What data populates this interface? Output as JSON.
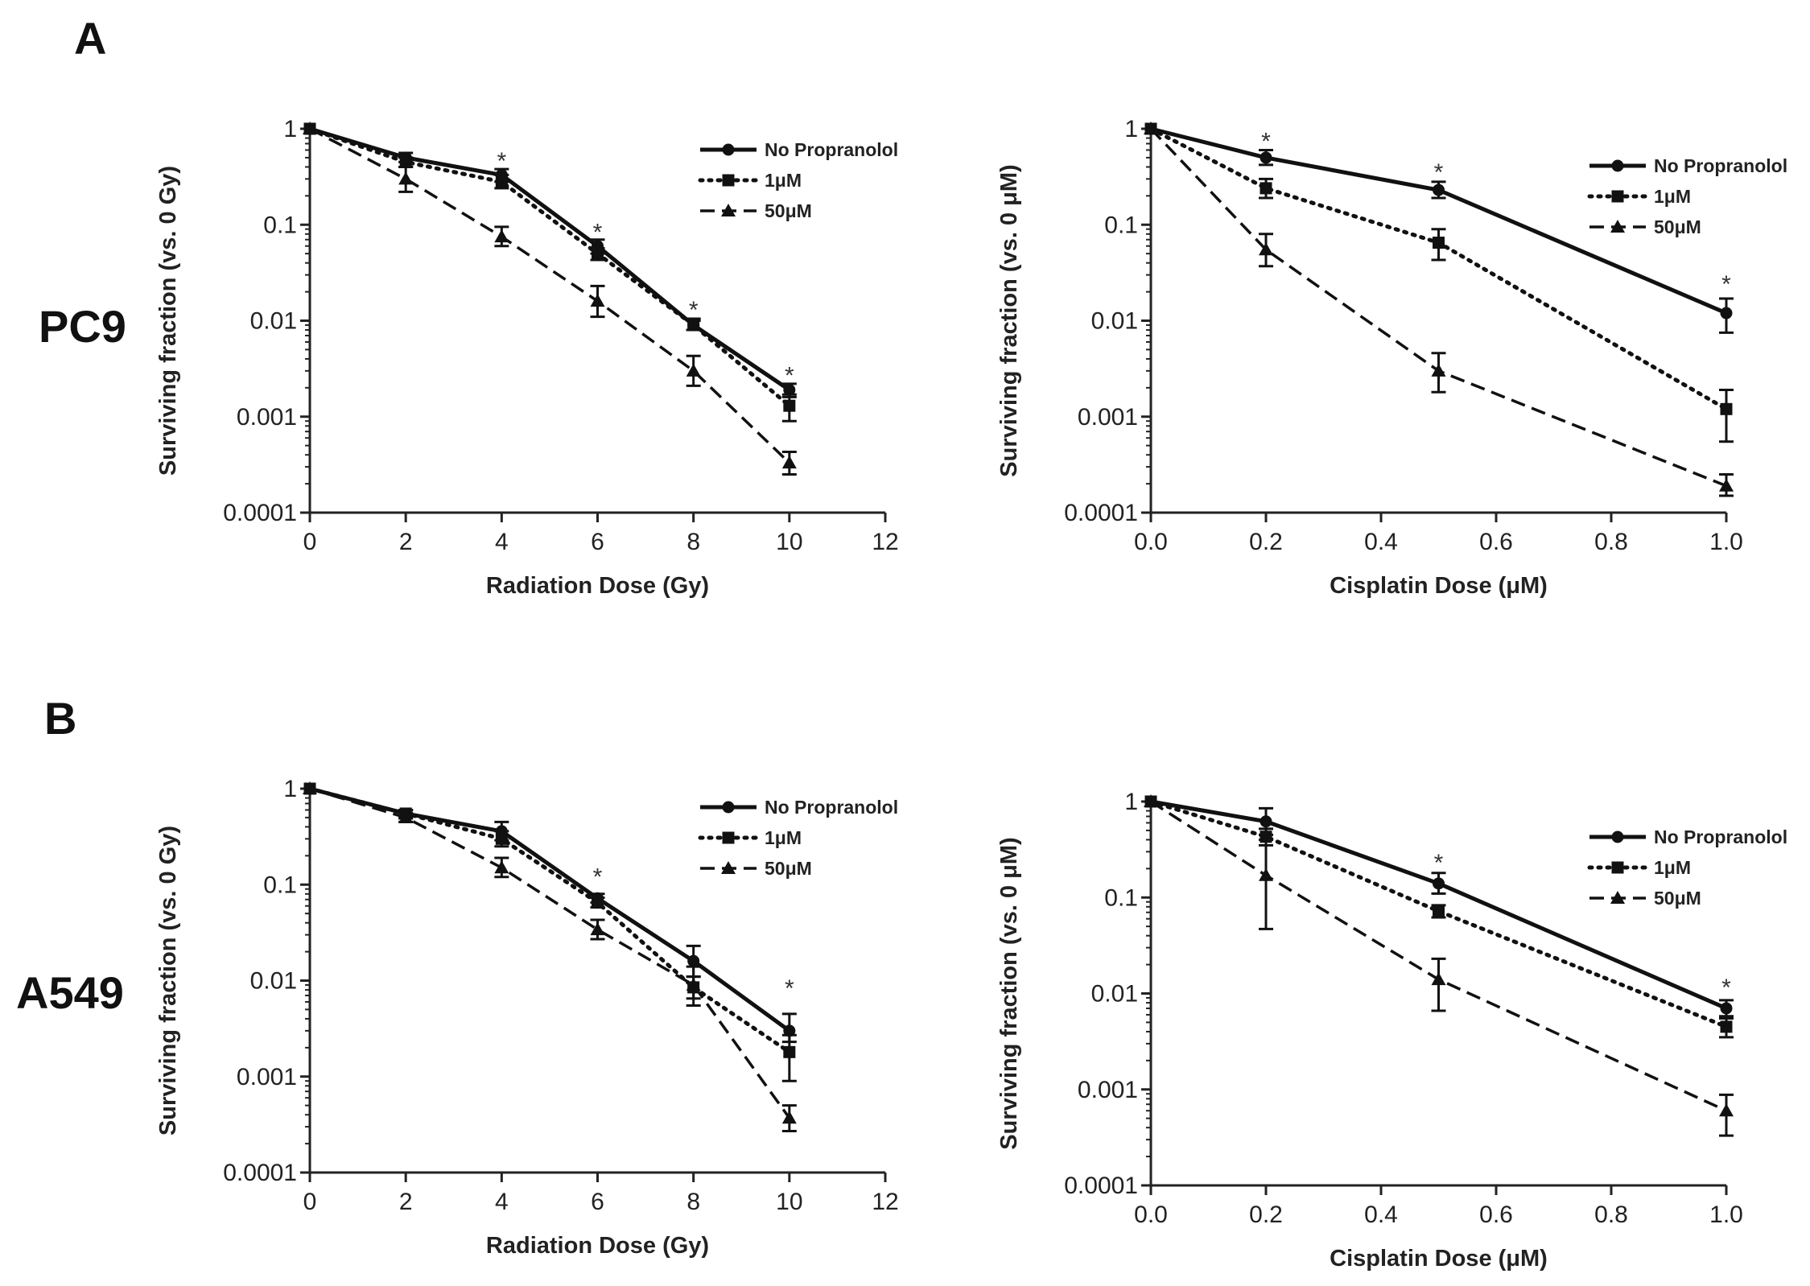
{
  "figure": {
    "panels": [
      "A",
      "B"
    ],
    "rows": [
      "PC9",
      "A549"
    ]
  },
  "colors": {
    "ink": "#111111",
    "axis": "#222222"
  },
  "chart_data": [
    {
      "type": "line",
      "id": "pc9-radiation",
      "xlabel": "Radiation Dose (Gy)",
      "ylabel": "Surviving fraction (vs. 0 Gy)",
      "yscale": "log",
      "xlim": [
        0,
        12
      ],
      "ylim": [
        0.0001,
        1
      ],
      "xticks": [
        0,
        2,
        4,
        6,
        8,
        10,
        12
      ],
      "xtick_labels": [
        "0",
        "2",
        "4",
        "6",
        "8",
        "10",
        "12"
      ],
      "yticks": [
        1,
        0.1,
        0.01,
        0.001,
        0.0001
      ],
      "ytick_labels": [
        "1",
        "0.1",
        "0.01",
        "0.001",
        "0.0001"
      ],
      "legend": [
        "No Propranolol",
        "1μM",
        "50μM"
      ],
      "series": [
        {
          "name": "No Propranolol",
          "style": "solid",
          "marker": "circle",
          "x": [
            0,
            2,
            4,
            6,
            8,
            10
          ],
          "y": [
            1,
            0.5,
            0.33,
            0.06,
            0.009,
            0.0019
          ],
          "err_lo": [
            1,
            0.45,
            0.28,
            0.05,
            0.008,
            0.0016
          ],
          "err_hi": [
            1,
            0.56,
            0.38,
            0.07,
            0.01,
            0.0022
          ]
        },
        {
          "name": "1μM",
          "style": "dotted",
          "marker": "square",
          "x": [
            0,
            2,
            4,
            6,
            8,
            10
          ],
          "y": [
            1,
            0.45,
            0.28,
            0.05,
            0.009,
            0.0013
          ],
          "err_lo": [
            1,
            0.4,
            0.24,
            0.043,
            0.008,
            0.0009
          ],
          "err_hi": [
            1,
            0.5,
            0.33,
            0.057,
            0.0105,
            0.0017
          ]
        },
        {
          "name": "50μM",
          "style": "dashed",
          "marker": "triangle",
          "x": [
            0,
            2,
            4,
            6,
            8,
            10
          ],
          "y": [
            1,
            0.3,
            0.075,
            0.016,
            0.003,
            0.00033
          ],
          "err_lo": [
            1,
            0.22,
            0.06,
            0.011,
            0.0021,
            0.00025
          ],
          "err_hi": [
            1,
            0.4,
            0.095,
            0.023,
            0.0043,
            0.00043
          ]
        }
      ],
      "stars": [
        {
          "x": 4,
          "y": 0.5,
          "text": "*"
        },
        {
          "x": 6,
          "y": 0.09,
          "text": "*"
        },
        {
          "x": 8,
          "y": 0.014,
          "text": "*"
        },
        {
          "x": 10,
          "y": 0.0029,
          "text": "*"
        }
      ]
    },
    {
      "type": "line",
      "id": "pc9-cisplatin",
      "xlabel": "Cisplatin Dose (μM)",
      "ylabel": "Surviving fraction (vs. 0 μM)",
      "yscale": "log",
      "xlim": [
        0,
        1
      ],
      "ylim": [
        0.0001,
        1
      ],
      "xticks": [
        0,
        0.2,
        0.4,
        0.6,
        0.8,
        1.0
      ],
      "xtick_labels": [
        "0.0",
        "0.2",
        "0.4",
        "0.6",
        "0.8",
        "1.0"
      ],
      "yticks": [
        1,
        0.1,
        0.01,
        0.001,
        0.0001
      ],
      "ytick_labels": [
        "1",
        "0.1",
        "0.01",
        "0.001",
        "0.0001"
      ],
      "legend": [
        "No Propranolol",
        "1μM",
        "50μM"
      ],
      "series": [
        {
          "name": "No Propranolol",
          "style": "solid",
          "marker": "circle",
          "x": [
            0,
            0.2,
            0.5,
            1.0
          ],
          "y": [
            1,
            0.5,
            0.23,
            0.012
          ],
          "err_lo": [
            1,
            0.42,
            0.19,
            0.0075
          ],
          "err_hi": [
            1,
            0.6,
            0.28,
            0.017
          ]
        },
        {
          "name": "1μM",
          "style": "dotted",
          "marker": "square",
          "x": [
            0,
            0.2,
            0.5,
            1.0
          ],
          "y": [
            1,
            0.24,
            0.065,
            0.0012
          ],
          "err_lo": [
            1,
            0.19,
            0.043,
            0.00055
          ],
          "err_hi": [
            1,
            0.3,
            0.09,
            0.0019
          ]
        },
        {
          "name": "50μM",
          "style": "dashed",
          "marker": "triangle",
          "x": [
            0,
            0.2,
            0.5,
            1.0
          ],
          "y": [
            1,
            0.055,
            0.003,
            0.00019
          ],
          "err_lo": [
            1,
            0.037,
            0.0018,
            0.00015
          ],
          "err_hi": [
            1,
            0.08,
            0.0046,
            0.00025
          ]
        }
      ],
      "stars": [
        {
          "x": 0.2,
          "y": 0.8,
          "text": "*"
        },
        {
          "x": 0.5,
          "y": 0.38,
          "text": "*"
        },
        {
          "x": 1.0,
          "y": 0.026,
          "text": "*"
        }
      ]
    },
    {
      "type": "line",
      "id": "a549-radiation",
      "xlabel": "Radiation Dose (Gy)",
      "ylabel": "Surviving fraction (vs. 0 Gy)",
      "yscale": "log",
      "xlim": [
        0,
        12
      ],
      "ylim": [
        0.0001,
        1
      ],
      "xticks": [
        0,
        2,
        4,
        6,
        8,
        10,
        12
      ],
      "xtick_labels": [
        "0",
        "2",
        "4",
        "6",
        "8",
        "10",
        "12"
      ],
      "yticks": [
        1,
        0.1,
        0.01,
        0.001,
        0.0001
      ],
      "ytick_labels": [
        "1",
        "0.1",
        "0.01",
        "0.001",
        "0.0001"
      ],
      "legend": [
        "No Propranolol",
        "1μM",
        "50μM"
      ],
      "series": [
        {
          "name": "No Propranolol",
          "style": "solid",
          "marker": "circle",
          "x": [
            0,
            2,
            4,
            6,
            8,
            10
          ],
          "y": [
            1,
            0.55,
            0.36,
            0.072,
            0.016,
            0.003
          ],
          "err_lo": [
            1,
            0.5,
            0.29,
            0.065,
            0.011,
            0.0023
          ],
          "err_hi": [
            1,
            0.6,
            0.45,
            0.08,
            0.023,
            0.0045
          ]
        },
        {
          "name": "1μM",
          "style": "dotted",
          "marker": "square",
          "x": [
            0,
            2,
            4,
            6,
            8,
            10
          ],
          "y": [
            1,
            0.55,
            0.3,
            0.065,
            0.0085,
            0.0018
          ],
          "err_lo": [
            1,
            0.49,
            0.25,
            0.058,
            0.0065,
            0.0009
          ],
          "err_hi": [
            1,
            0.6,
            0.36,
            0.073,
            0.011,
            0.0027
          ]
        },
        {
          "name": "50μM",
          "style": "dashed",
          "marker": "triangle",
          "x": [
            0,
            2,
            4,
            6,
            8,
            10
          ],
          "y": [
            1,
            0.5,
            0.15,
            0.034,
            0.009,
            0.00037
          ],
          "err_lo": [
            1,
            0.45,
            0.12,
            0.027,
            0.0055,
            0.00027
          ],
          "err_hi": [
            1,
            0.56,
            0.19,
            0.043,
            0.014,
            0.0005
          ]
        }
      ],
      "stars": [
        {
          "x": 6,
          "y": 0.13,
          "text": "*"
        },
        {
          "x": 10,
          "y": 0.009,
          "text": "*"
        }
      ]
    },
    {
      "type": "line",
      "id": "a549-cisplatin",
      "xlabel": "Cisplatin Dose (μM)",
      "ylabel": "Surviving fraction (vs. 0 μM)",
      "yscale": "log",
      "xlim": [
        0,
        1
      ],
      "ylim": [
        0.0001,
        1
      ],
      "xticks": [
        0,
        0.2,
        0.4,
        0.6,
        0.8,
        1.0
      ],
      "xtick_labels": [
        "0.0",
        "0.2",
        "0.4",
        "0.6",
        "0.8",
        "1.0"
      ],
      "yticks": [
        1,
        0.1,
        0.01,
        0.001,
        0.0001
      ],
      "ytick_labels": [
        "1",
        "0.1",
        "0.01",
        "0.001",
        "0.0001"
      ],
      "legend": [
        "No Propranolol",
        "1μM",
        "50μM"
      ],
      "series": [
        {
          "name": "No Propranolol",
          "style": "solid",
          "marker": "circle",
          "x": [
            0,
            0.2,
            0.5,
            1.0
          ],
          "y": [
            1,
            0.62,
            0.14,
            0.007
          ],
          "err_lo": [
            1,
            0.45,
            0.11,
            0.0055
          ],
          "err_hi": [
            1,
            0.85,
            0.18,
            0.0085
          ]
        },
        {
          "name": "1μM",
          "style": "dotted",
          "marker": "square",
          "x": [
            0,
            0.2,
            0.5,
            1.0
          ],
          "y": [
            1,
            0.43,
            0.072,
            0.0045
          ],
          "err_lo": [
            1,
            0.35,
            0.062,
            0.0035
          ],
          "err_hi": [
            1,
            0.52,
            0.083,
            0.0058
          ]
        },
        {
          "name": "50μM",
          "style": "dashed",
          "marker": "triangle",
          "x": [
            0,
            0.2,
            0.5,
            1.0
          ],
          "y": [
            1,
            0.17,
            0.014,
            0.0006
          ],
          "err_lo": [
            1,
            0.047,
            0.0066,
            0.00033
          ],
          "err_hi": [
            1,
            0.4,
            0.023,
            0.00088
          ]
        }
      ],
      "stars": [
        {
          "x": 0.5,
          "y": 0.25,
          "text": "*"
        },
        {
          "x": 1.0,
          "y": 0.0125,
          "text": "*"
        }
      ]
    }
  ]
}
